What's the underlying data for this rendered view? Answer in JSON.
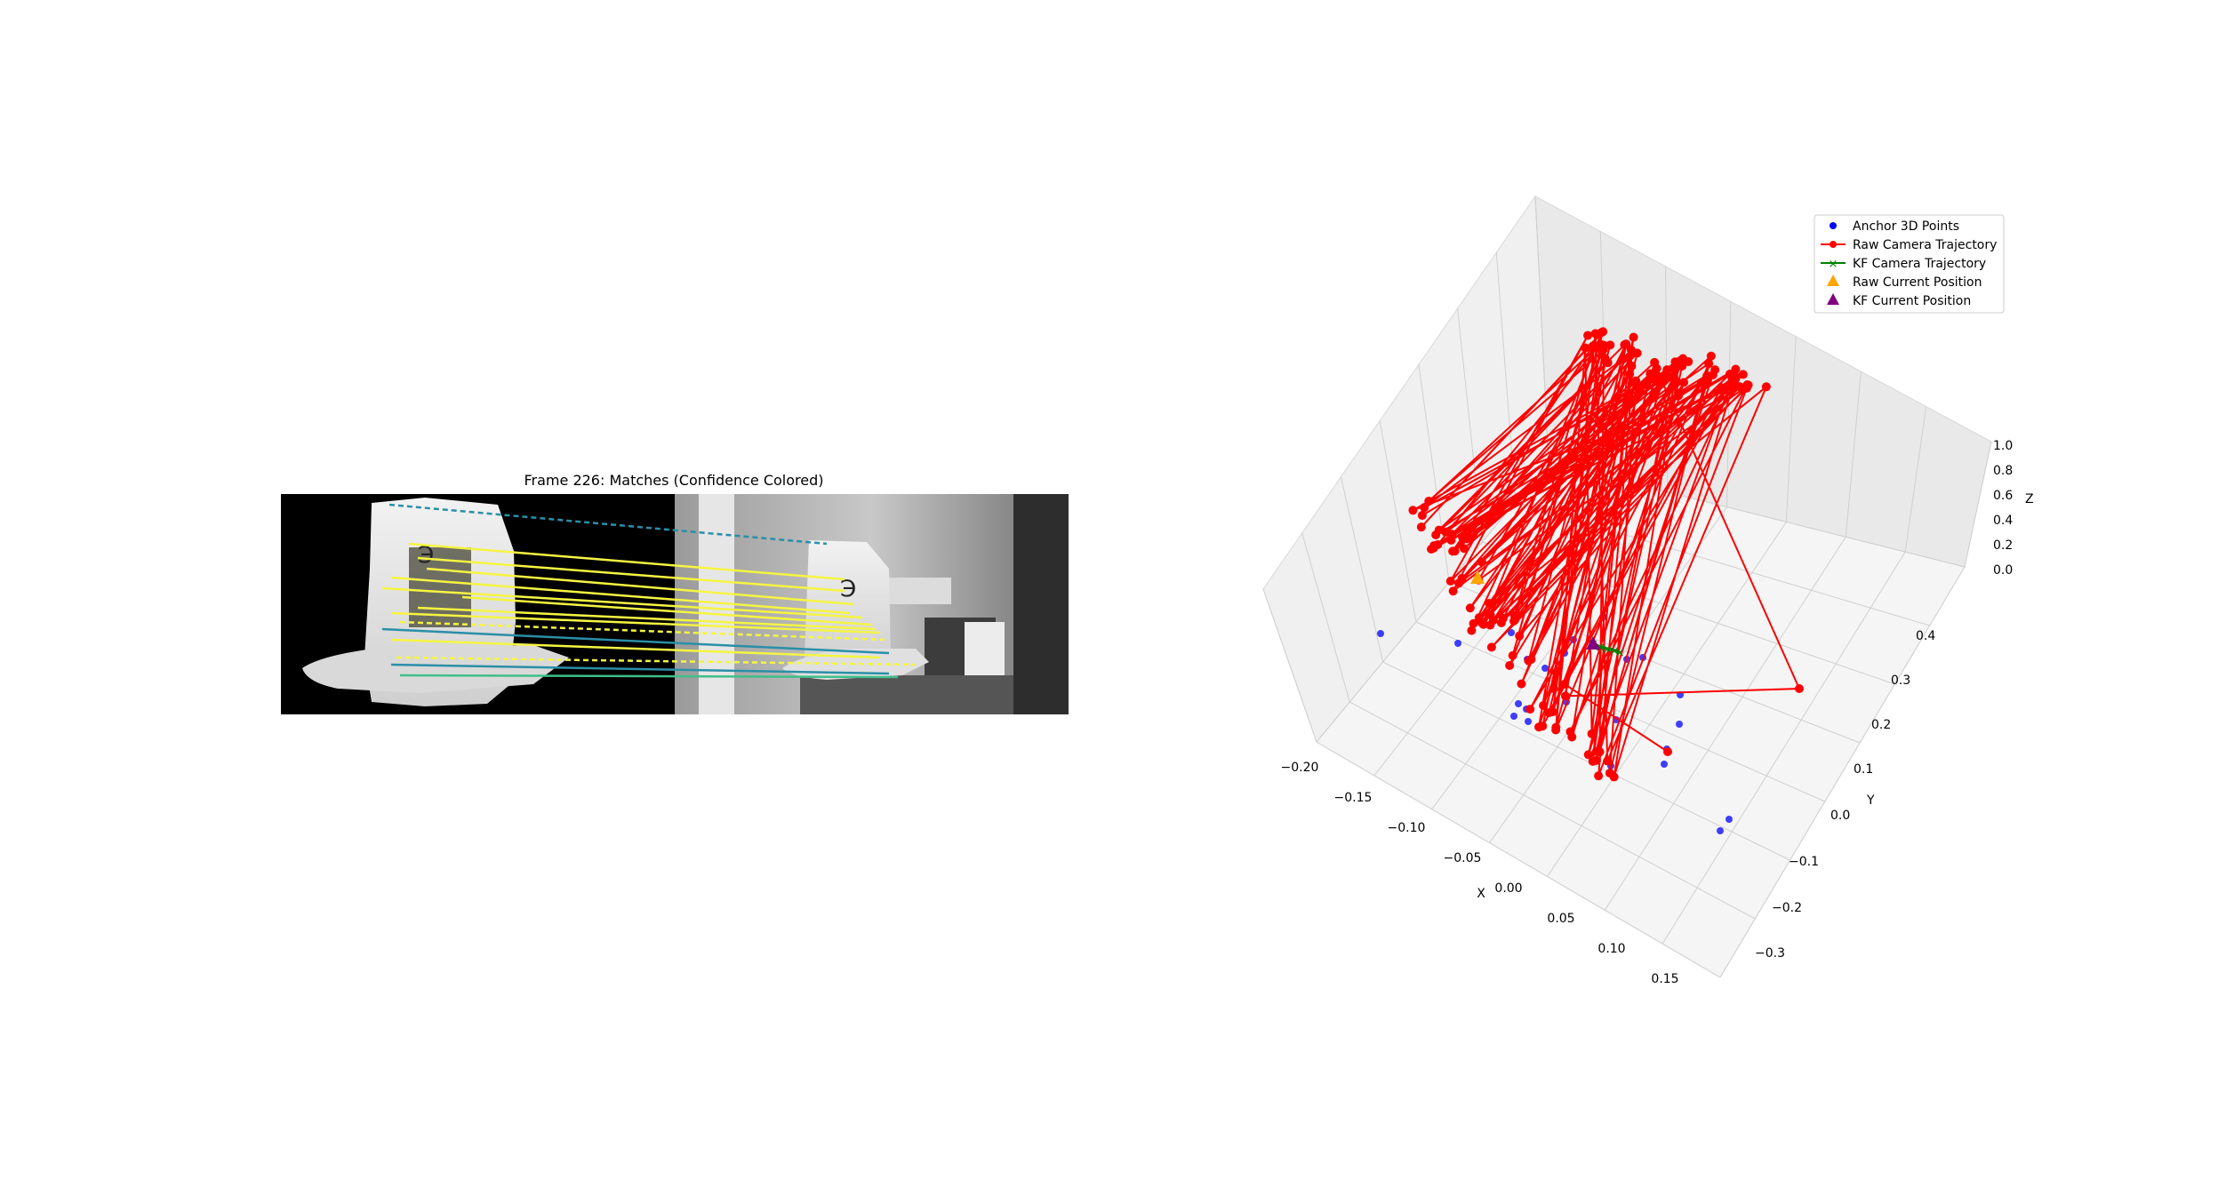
{
  "figure": {
    "left_panel": {
      "title": "Frame 226: Matches (Confidence Colored)"
    },
    "right_panel": {
      "axes": {
        "xlabel": "X",
        "ylabel": "Y",
        "zlabel": "Z"
      },
      "legend": {
        "anchor": "Anchor 3D Points",
        "raw_traj": "Raw Camera Trajectory",
        "kf_traj": "KF Camera Trajectory",
        "raw_cur": "Raw Current Position",
        "kf_cur": "KF Current Position"
      }
    }
  },
  "colors": {
    "anchor": "#0000ff",
    "raw": "#ff0000",
    "kf": "#008000",
    "raw_cur": "#ffa500",
    "kf_cur": "#800080",
    "match_high": "#f5f542",
    "match_mid": "#3fbf8a",
    "match_low": "#2a8fa8"
  },
  "chart_data": [
    {
      "type": "image-matches",
      "title": "Frame 226: Matches (Confidence Colored)",
      "description_free": true
    },
    {
      "type": "scatter3d",
      "x": {
        "label": "X",
        "ticks": [
          "−0.20",
          "−0.15",
          "−0.10",
          "−0.05",
          "0.00",
          "0.05",
          "0.10",
          "0.15"
        ]
      },
      "y": {
        "label": "Y",
        "ticks": [
          "−0.3",
          "−0.2",
          "−0.1",
          "0.0",
          "0.1",
          "0.2",
          "0.3",
          "0.4"
        ]
      },
      "z": {
        "label": "Z",
        "ticks": [
          "0.0",
          "0.2",
          "0.4",
          "0.6",
          "0.8",
          "1.0"
        ]
      },
      "legend_position": "top-right",
      "series": [
        {
          "name": "Anchor 3D Points"
        },
        {
          "name": "Raw Camera Trajectory"
        },
        {
          "name": "KF Camera Trajectory"
        },
        {
          "name": "Raw Current Position"
        },
        {
          "name": "KF Current Position"
        }
      ]
    }
  ]
}
